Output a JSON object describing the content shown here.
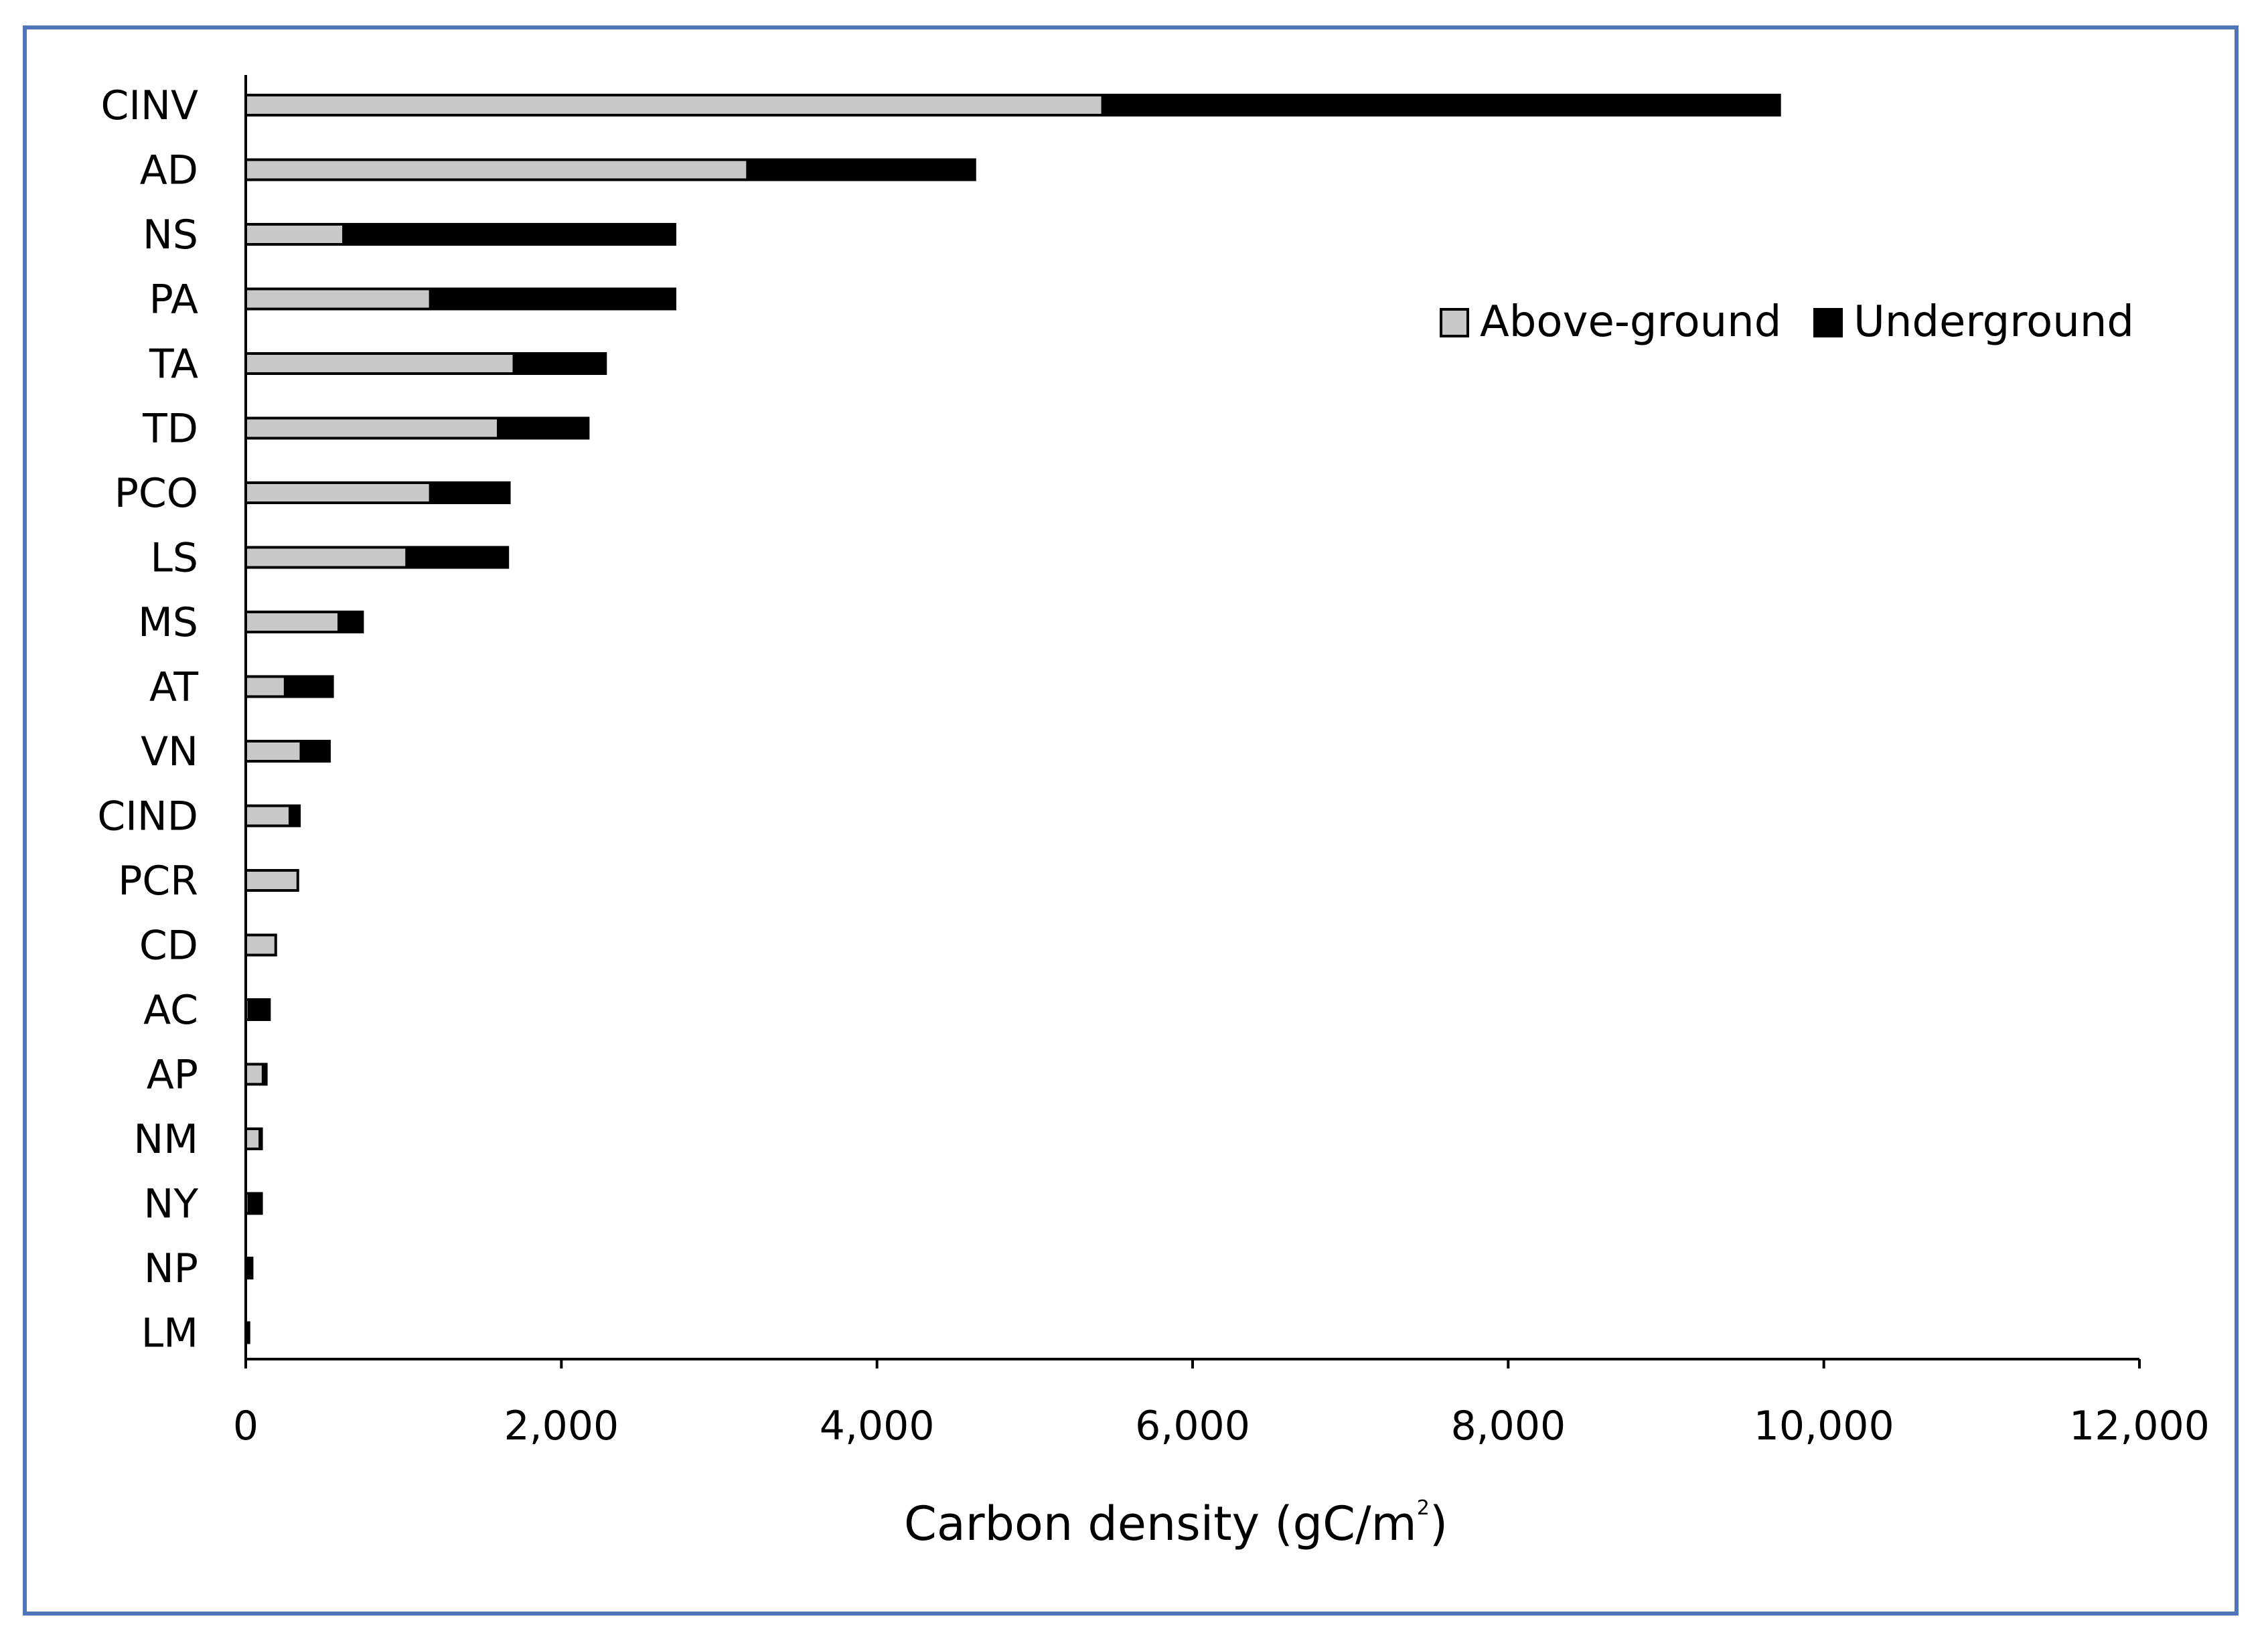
{
  "chart_data": {
    "type": "bar",
    "orientation": "horizontal",
    "stacked": true,
    "categories": [
      "CINV",
      "AD",
      "NS",
      "PA",
      "TA",
      "TD",
      "PCO",
      "LS",
      "MS",
      "AT",
      "VN",
      "CIND",
      "PCR",
      "CD",
      "AC",
      "AP",
      "NM",
      "NY",
      "NP",
      "LM"
    ],
    "series": [
      {
        "name": "Above-ground",
        "color": "#c8c8c8",
        "values": [
          5430,
          3180,
          620,
          1170,
          1700,
          1600,
          1170,
          1020,
          590,
          250,
          350,
          280,
          330,
          190,
          20,
          110,
          90,
          20,
          10,
          5
        ]
      },
      {
        "name": "Underground",
        "color": "#000000",
        "values": [
          4290,
          1440,
          2100,
          1550,
          580,
          570,
          500,
          640,
          150,
          300,
          180,
          60,
          0,
          0,
          130,
          20,
          10,
          80,
          30,
          15
        ]
      }
    ],
    "xlabel_main": "Carbon density  (gC/m",
    "xlabel_sup": "2",
    "xlabel_close": ")",
    "xlim": [
      0,
      12000
    ],
    "xticks": [
      0,
      2000,
      4000,
      6000,
      8000,
      10000,
      12000
    ],
    "xtick_labels": [
      "0",
      "2,000",
      "4,000",
      "6,000",
      "8,000",
      "10,000",
      "12,000"
    ],
    "legend": {
      "position": "top-right",
      "entries": [
        "Above-ground",
        "Underground"
      ]
    },
    "grid": false,
    "border_color": "#4f76b9"
  }
}
